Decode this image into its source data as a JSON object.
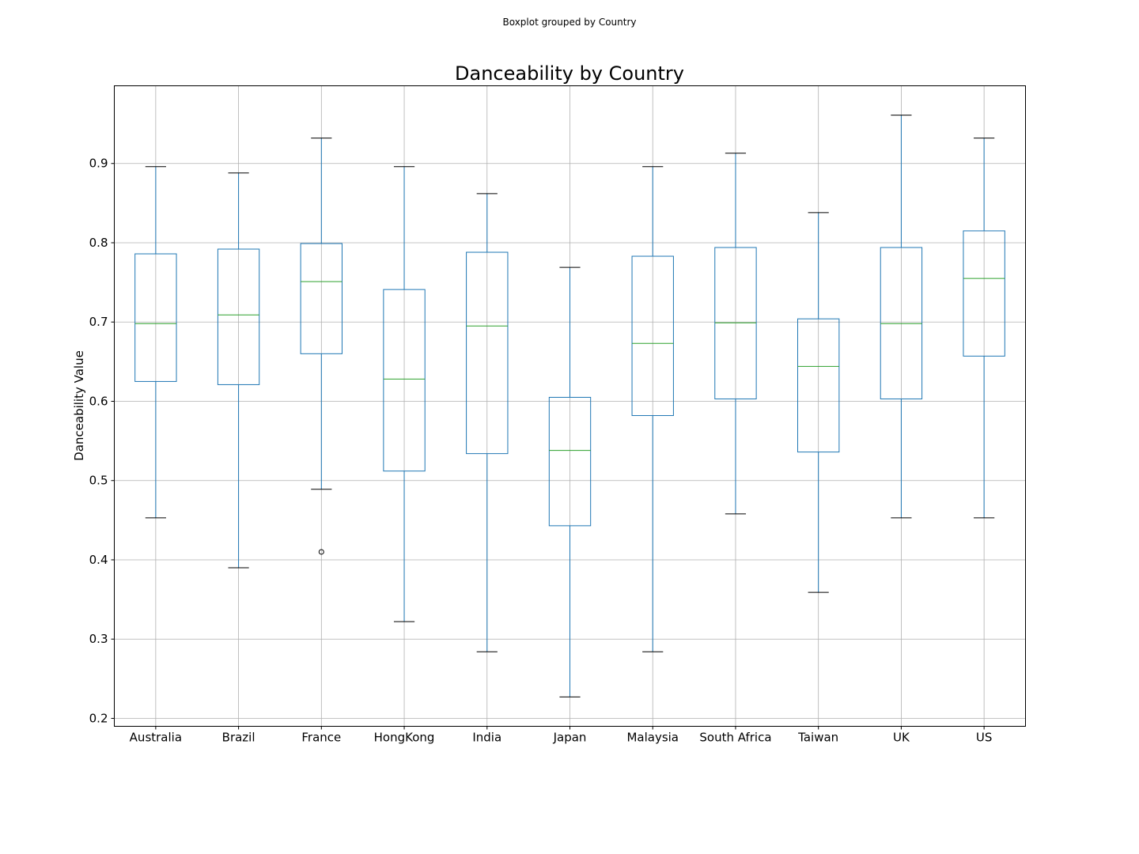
{
  "chart_data": {
    "type": "box",
    "suptitle": "Boxplot grouped by Country",
    "title": "Danceability by Country",
    "xlabel": "",
    "ylabel": "Danceability Value",
    "ylim": [
      0.19,
      0.998
    ],
    "yticks": [
      0.2,
      0.3,
      0.4,
      0.5,
      0.6,
      0.7,
      0.8,
      0.9
    ],
    "grid": true,
    "legend": "none",
    "colors": {
      "box": "#1f77b4",
      "median": "#2ca02c",
      "cap": "#000000",
      "grid": "#b0b0b0"
    },
    "categories": [
      "Australia",
      "Brazil",
      "France",
      "HongKong",
      "India",
      "Japan",
      "Malaysia",
      "South Africa",
      "Taiwan",
      "UK",
      "US"
    ],
    "boxes": [
      {
        "category": "Australia",
        "whislo": 0.453,
        "q1": 0.625,
        "med": 0.698,
        "q3": 0.786,
        "whishi": 0.896,
        "fliers": []
      },
      {
        "category": "Brazil",
        "whislo": 0.39,
        "q1": 0.621,
        "med": 0.709,
        "q3": 0.792,
        "whishi": 0.888,
        "fliers": []
      },
      {
        "category": "France",
        "whislo": 0.489,
        "q1": 0.66,
        "med": 0.751,
        "q3": 0.799,
        "whishi": 0.932,
        "fliers": [
          0.41
        ]
      },
      {
        "category": "HongKong",
        "whislo": 0.322,
        "q1": 0.512,
        "med": 0.628,
        "q3": 0.741,
        "whishi": 0.896,
        "fliers": []
      },
      {
        "category": "India",
        "whislo": 0.284,
        "q1": 0.534,
        "med": 0.695,
        "q3": 0.788,
        "whishi": 0.862,
        "fliers": []
      },
      {
        "category": "Japan",
        "whislo": 0.227,
        "q1": 0.443,
        "med": 0.538,
        "q3": 0.605,
        "whishi": 0.769,
        "fliers": []
      },
      {
        "category": "Malaysia",
        "whislo": 0.284,
        "q1": 0.582,
        "med": 0.673,
        "q3": 0.783,
        "whishi": 0.896,
        "fliers": []
      },
      {
        "category": "South Africa",
        "whislo": 0.458,
        "q1": 0.603,
        "med": 0.699,
        "q3": 0.794,
        "whishi": 0.913,
        "fliers": []
      },
      {
        "category": "Taiwan",
        "whislo": 0.359,
        "q1": 0.536,
        "med": 0.644,
        "q3": 0.704,
        "whishi": 0.838,
        "fliers": []
      },
      {
        "category": "UK",
        "whislo": 0.453,
        "q1": 0.603,
        "med": 0.698,
        "q3": 0.794,
        "whishi": 0.961,
        "fliers": []
      },
      {
        "category": "US",
        "whislo": 0.453,
        "q1": 0.657,
        "med": 0.755,
        "q3": 0.815,
        "whishi": 0.932,
        "fliers": []
      }
    ]
  }
}
